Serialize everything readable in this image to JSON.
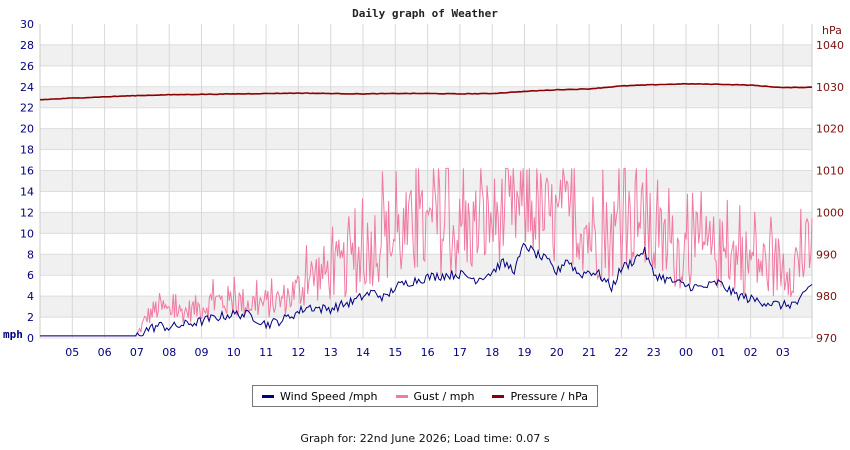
{
  "chart_data": {
    "type": "line",
    "title": "Daily graph of Weather",
    "x": {
      "tick_labels": [
        "05",
        "06",
        "07",
        "08",
        "09",
        "10",
        "11",
        "12",
        "13",
        "14",
        "15",
        "16",
        "17",
        "18",
        "19",
        "20",
        "21",
        "22",
        "23",
        "00",
        "01",
        "02",
        "03"
      ],
      "start_hour": 4.0,
      "end_hour": 27.9
    },
    "y_left": {
      "label": "mph",
      "range": [
        0,
        30
      ],
      "ticks": [
        0,
        2,
        4,
        6,
        8,
        10,
        12,
        14,
        16,
        18,
        20,
        22,
        24,
        26,
        28,
        30
      ]
    },
    "y_right": {
      "label": "hPa",
      "range": [
        970,
        1045
      ],
      "ticks": [
        970,
        980,
        990,
        1000,
        1010,
        1020,
        1030,
        1040
      ]
    },
    "grid": "horizontal bands and vertical lines",
    "series": [
      {
        "name": "Wind Speed /mph",
        "axis": "left",
        "color": "#000080",
        "hours": [
          4.0,
          7.0,
          7.3,
          7.7,
          8.0,
          8.5,
          9.0,
          9.5,
          10.0,
          10.5,
          11.0,
          11.5,
          12.0,
          12.3,
          12.7,
          13.0,
          13.3,
          13.7,
          14.0,
          14.3,
          14.7,
          15.0,
          15.5,
          16.0,
          16.5,
          17.0,
          17.5,
          18.0,
          18.3,
          18.7,
          19.0,
          19.3,
          19.7,
          20.0,
          20.3,
          20.7,
          21.0,
          21.3,
          21.7,
          22.0,
          22.3,
          22.7,
          23.0,
          23.5,
          24.0,
          24.5,
          25.0,
          25.5,
          26.0,
          26.5,
          27.0,
          27.5,
          27.9
        ],
        "values": [
          0.2,
          0.2,
          0.8,
          1.2,
          1.0,
          1.3,
          1.6,
          2.0,
          2.3,
          2.2,
          1.3,
          1.7,
          2.5,
          3.0,
          2.8,
          2.8,
          3.1,
          3.5,
          4.0,
          4.4,
          3.8,
          4.9,
          5.4,
          5.8,
          6.0,
          6.1,
          5.6,
          6.3,
          7.2,
          6.5,
          9.0,
          8.1,
          7.4,
          6.2,
          7.6,
          6.0,
          6.4,
          6.1,
          4.8,
          6.7,
          7.2,
          8.4,
          6.1,
          5.5,
          5.0,
          4.8,
          5.3,
          4.2,
          3.7,
          3.4,
          3.1,
          3.4,
          5.2
        ]
      },
      {
        "name": "Gust / mph",
        "axis": "left",
        "color": "#f07aa0",
        "hours": [
          4.0,
          7.0,
          7.3,
          7.7,
          8.0,
          8.5,
          9.0,
          9.5,
          10.0,
          10.5,
          11.0,
          11.5,
          12.0,
          12.5,
          13.0,
          13.5,
          14.0,
          14.5,
          15.0,
          15.5,
          16.0,
          16.5,
          17.0,
          17.5,
          18.0,
          18.5,
          19.0,
          19.5,
          20.0,
          20.5,
          21.0,
          21.5,
          22.0,
          22.5,
          23.0,
          23.5,
          24.0,
          24.5,
          25.0,
          25.5,
          26.0,
          26.5,
          27.0,
          27.5,
          27.9
        ],
        "values": [
          0.2,
          0.2,
          2.0,
          3.0,
          2.5,
          2.5,
          3.0,
          3.5,
          3.5,
          3.3,
          3.3,
          3.6,
          4.6,
          6.0,
          6.3,
          6.8,
          8.0,
          9.5,
          9.5,
          10.0,
          10.0,
          10.5,
          9.7,
          10.6,
          11.2,
          12.0,
          12.5,
          11.8,
          11.0,
          11.5,
          10.2,
          9.5,
          10.4,
          11.5,
          9.2,
          8.5,
          8.2,
          8.4,
          8.1,
          7.7,
          7.3,
          6.9,
          7.0,
          7.2,
          8.5
        ],
        "spikes": {
          "min": 4.0,
          "max": 16.2
        }
      },
      {
        "name": "Pressure / hPa",
        "axis": "right",
        "color": "#8b0000",
        "hours": [
          4.0,
          5.0,
          6.0,
          7.0,
          8.0,
          9.0,
          10.0,
          11.0,
          12.0,
          13.0,
          14.0,
          15.0,
          16.0,
          17.0,
          18.0,
          19.0,
          20.0,
          21.0,
          22.0,
          23.0,
          24.0,
          25.0,
          26.0,
          27.0,
          27.9
        ],
        "values": [
          1026.9,
          1027.3,
          1027.6,
          1027.9,
          1028.1,
          1028.2,
          1028.3,
          1028.4,
          1028.5,
          1028.4,
          1028.3,
          1028.4,
          1028.4,
          1028.3,
          1028.4,
          1028.9,
          1029.3,
          1029.5,
          1030.2,
          1030.5,
          1030.7,
          1030.6,
          1030.4,
          1029.8,
          1029.9
        ]
      }
    ]
  },
  "legend": [
    {
      "label": "Wind Speed /mph",
      "color": "#000080"
    },
    {
      "label": "Gust / mph",
      "color": "#f07aa0"
    },
    {
      "label": "Pressure / hPa",
      "color": "#8b0000"
    }
  ],
  "footer": "Graph for: 22nd June 2026; Load time: 0.07 s"
}
